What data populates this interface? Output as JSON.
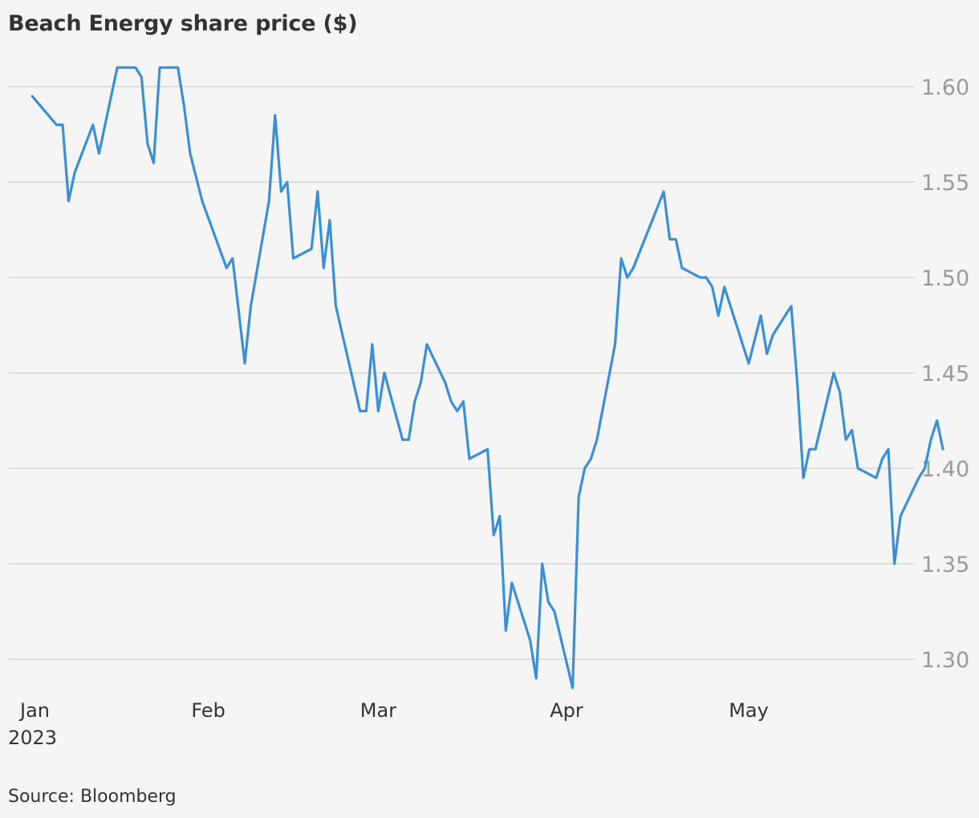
{
  "chart_data": {
    "type": "line",
    "title": "Beach Energy share price ($)",
    "source": "Source: Bloomberg",
    "x_start_date": "2023-01-01",
    "x_ticks": [
      {
        "date": "2023-01-01",
        "label": "Jan"
      },
      {
        "date": "2023-02-01",
        "label": "Feb"
      },
      {
        "date": "2023-03-01",
        "label": "Mar"
      },
      {
        "date": "2023-04-01",
        "label": "Apr"
      },
      {
        "date": "2023-05-01",
        "label": "May"
      }
    ],
    "year_label": "2023",
    "y_ticks": [
      {
        "value": 1.3,
        "label": "1.30"
      },
      {
        "value": 1.35,
        "label": "1.35"
      },
      {
        "value": 1.4,
        "label": "1.40"
      },
      {
        "value": 1.45,
        "label": "1.45"
      },
      {
        "value": 1.5,
        "label": "1.50"
      },
      {
        "value": 1.55,
        "label": "1.55"
      },
      {
        "value": 1.6,
        "label": "1.60"
      }
    ],
    "ylim": [
      1.285,
      1.625
    ],
    "grid": true,
    "line_color": "#3a8fd9",
    "series": [
      {
        "values": [
          [
            "2023-01-03",
            1.595
          ],
          [
            "2023-01-07",
            1.58
          ],
          [
            "2023-01-08",
            1.58
          ],
          [
            "2023-01-09",
            1.54
          ],
          [
            "2023-01-10",
            1.555
          ],
          [
            "2023-01-13",
            1.58
          ],
          [
            "2023-01-14",
            1.565
          ],
          [
            "2023-01-17",
            1.61
          ],
          [
            "2023-01-20",
            1.61
          ],
          [
            "2023-01-21",
            1.605
          ],
          [
            "2023-01-22",
            1.57
          ],
          [
            "2023-01-23",
            1.56
          ],
          [
            "2023-01-24",
            1.61
          ],
          [
            "2023-01-27",
            1.61
          ],
          [
            "2023-01-28",
            1.59
          ],
          [
            "2023-01-29",
            1.565
          ],
          [
            "2023-01-31",
            1.54
          ],
          [
            "2023-02-04",
            1.505
          ],
          [
            "2023-02-05",
            1.51
          ],
          [
            "2023-02-07",
            1.455
          ],
          [
            "2023-02-08",
            1.485
          ],
          [
            "2023-02-11",
            1.54
          ],
          [
            "2023-02-12",
            1.585
          ],
          [
            "2023-02-13",
            1.545
          ],
          [
            "2023-02-14",
            1.55
          ],
          [
            "2023-02-15",
            1.51
          ],
          [
            "2023-02-18",
            1.515
          ],
          [
            "2023-02-19",
            1.545
          ],
          [
            "2023-02-20",
            1.505
          ],
          [
            "2023-02-21",
            1.53
          ],
          [
            "2023-02-22",
            1.485
          ],
          [
            "2023-02-26",
            1.43
          ],
          [
            "2023-02-27",
            1.43
          ],
          [
            "2023-02-28",
            1.465
          ],
          [
            "2023-03-01",
            1.43
          ],
          [
            "2023-03-02",
            1.45
          ],
          [
            "2023-03-05",
            1.415
          ],
          [
            "2023-03-06",
            1.415
          ],
          [
            "2023-03-07",
            1.435
          ],
          [
            "2023-03-08",
            1.445
          ],
          [
            "2023-03-09",
            1.465
          ],
          [
            "2023-03-12",
            1.445
          ],
          [
            "2023-03-13",
            1.435
          ],
          [
            "2023-03-14",
            1.43
          ],
          [
            "2023-03-15",
            1.435
          ],
          [
            "2023-03-16",
            1.405
          ],
          [
            "2023-03-19",
            1.41
          ],
          [
            "2023-03-20",
            1.365
          ],
          [
            "2023-03-21",
            1.375
          ],
          [
            "2023-03-22",
            1.315
          ],
          [
            "2023-03-23",
            1.34
          ],
          [
            "2023-03-26",
            1.31
          ],
          [
            "2023-03-27",
            1.29
          ],
          [
            "2023-03-28",
            1.35
          ],
          [
            "2023-03-29",
            1.33
          ],
          [
            "2023-03-30",
            1.325
          ],
          [
            "2023-04-02",
            1.285
          ],
          [
            "2023-04-03",
            1.385
          ],
          [
            "2023-04-04",
            1.4
          ],
          [
            "2023-04-05",
            1.405
          ],
          [
            "2023-04-06",
            1.415
          ],
          [
            "2023-04-09",
            1.465
          ],
          [
            "2023-04-10",
            1.51
          ],
          [
            "2023-04-11",
            1.5
          ],
          [
            "2023-04-12",
            1.505
          ],
          [
            "2023-04-17",
            1.545
          ],
          [
            "2023-04-18",
            1.52
          ],
          [
            "2023-04-19",
            1.52
          ],
          [
            "2023-04-20",
            1.505
          ],
          [
            "2023-04-23",
            1.5
          ],
          [
            "2023-04-24",
            1.5
          ],
          [
            "2023-04-25",
            1.495
          ],
          [
            "2023-04-26",
            1.48
          ],
          [
            "2023-04-27",
            1.495
          ],
          [
            "2023-05-01",
            1.455
          ],
          [
            "2023-05-03",
            1.48
          ],
          [
            "2023-05-04",
            1.46
          ],
          [
            "2023-05-05",
            1.47
          ],
          [
            "2023-05-08",
            1.485
          ],
          [
            "2023-05-09",
            1.445
          ],
          [
            "2023-05-10",
            1.395
          ],
          [
            "2023-05-11",
            1.41
          ],
          [
            "2023-05-12",
            1.41
          ],
          [
            "2023-05-15",
            1.45
          ],
          [
            "2023-05-16",
            1.44
          ],
          [
            "2023-05-17",
            1.415
          ],
          [
            "2023-05-18",
            1.42
          ],
          [
            "2023-05-19",
            1.4
          ],
          [
            "2023-05-22",
            1.395
          ],
          [
            "2023-05-23",
            1.405
          ],
          [
            "2023-05-24",
            1.41
          ],
          [
            "2023-05-25",
            1.35
          ],
          [
            "2023-05-26",
            1.375
          ],
          [
            "2023-05-29",
            1.395
          ],
          [
            "2023-05-30",
            1.4
          ],
          [
            "2023-05-31",
            1.415
          ],
          [
            "2023-06-01",
            1.425
          ],
          [
            "2023-06-02",
            1.41
          ]
        ]
      }
    ]
  }
}
